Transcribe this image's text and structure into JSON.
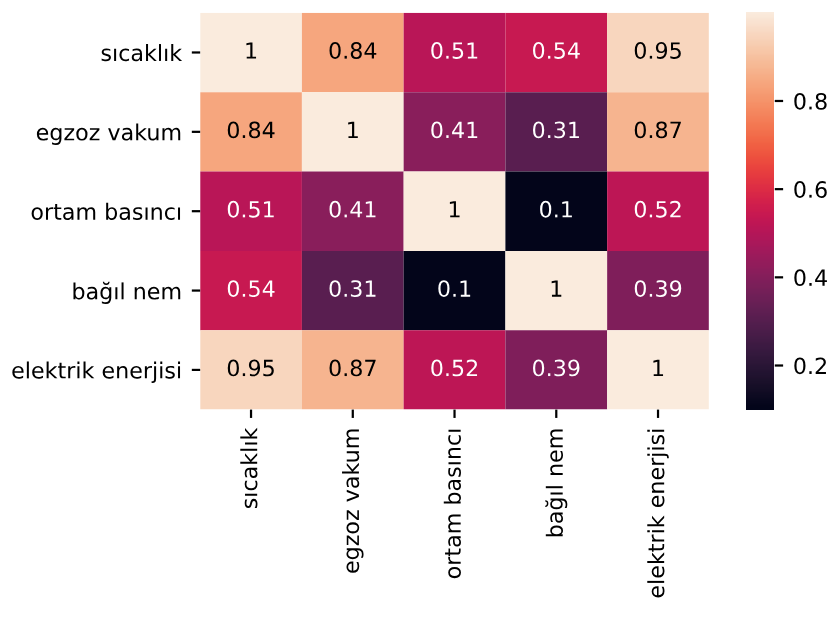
{
  "chart_data": {
    "type": "heatmap",
    "categories": [
      "sıcaklık",
      "egzoz vakum",
      "ortam basıncı",
      "bağıl nem",
      "elektrik enerjisi"
    ],
    "y_categories": [
      "sıcaklık",
      "egzoz vakum",
      "ortam basıncı",
      "bağıl nem",
      "elektrik enerjisi"
    ],
    "cells": [
      [
        1,
        0.84,
        0.51,
        0.54,
        0.95
      ],
      [
        0.84,
        1,
        0.41,
        0.31,
        0.87
      ],
      [
        0.51,
        0.41,
        1,
        0.1,
        0.52
      ],
      [
        0.54,
        0.31,
        0.1,
        1,
        0.39
      ],
      [
        0.95,
        0.87,
        0.52,
        0.39,
        1
      ]
    ],
    "data_labels": true,
    "clim": [
      0.1,
      1
    ],
    "cticks": [
      0.2,
      0.4,
      0.6,
      0.8
    ]
  }
}
